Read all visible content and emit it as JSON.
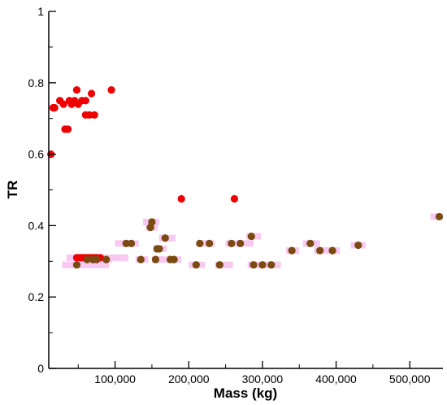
{
  "chart_data": {
    "type": "scatter",
    "title": "",
    "xlabel": "Mass (kg)",
    "ylabel": "TR",
    "xlim": [
      10000,
      545000
    ],
    "ylim": [
      0,
      1
    ],
    "xticks": [
      100000,
      200000,
      300000,
      400000,
      500000
    ],
    "xtick_labels": [
      "100,000",
      "200,000",
      "300,000",
      "400,000",
      "500,000"
    ],
    "yticks": [
      0,
      0.2,
      0.4,
      0.6,
      0.8,
      1
    ],
    "ytick_labels": [
      "0",
      "0.2",
      "0.4",
      "0.6",
      "0.8",
      "1"
    ],
    "grid": false,
    "colors": {
      "red_points": "#ee0000",
      "brown_points": "#7a4a10",
      "pink_band": "#f7c8f0",
      "axis": "#000000"
    },
    "series": [
      {
        "color": "#ee0000",
        "points": [
          [
            13000,
            0.6
          ],
          [
            16000,
            0.73
          ],
          [
            18000,
            0.73
          ],
          [
            25000,
            0.75
          ],
          [
            30000,
            0.74
          ],
          [
            32000,
            0.67
          ],
          [
            36000,
            0.67
          ],
          [
            38000,
            0.75
          ],
          [
            41000,
            0.74
          ],
          [
            45000,
            0.75
          ],
          [
            48000,
            0.78
          ],
          [
            50000,
            0.74
          ],
          [
            55000,
            0.75
          ],
          [
            60000,
            0.75
          ],
          [
            60000,
            0.71
          ],
          [
            65000,
            0.71
          ],
          [
            68000,
            0.77
          ],
          [
            72000,
            0.71
          ],
          [
            95000,
            0.78
          ],
          [
            190000,
            0.475
          ],
          [
            262000,
            0.475
          ],
          [
            48000,
            0.31
          ],
          [
            52000,
            0.31
          ],
          [
            55000,
            0.31
          ],
          [
            58000,
            0.31
          ],
          [
            62000,
            0.31
          ],
          [
            65000,
            0.31
          ],
          [
            68000,
            0.31
          ],
          [
            72000,
            0.31
          ],
          [
            75000,
            0.31
          ],
          [
            80000,
            0.31
          ]
        ]
      },
      {
        "color": "#7a4a10",
        "points": [
          [
            48000,
            0.29
          ],
          [
            62000,
            0.305
          ],
          [
            70000,
            0.305
          ],
          [
            75000,
            0.305
          ],
          [
            88000,
            0.305
          ],
          [
            115000,
            0.35
          ],
          [
            122000,
            0.35
          ],
          [
            135000,
            0.305
          ],
          [
            148000,
            0.395
          ],
          [
            150000,
            0.41
          ],
          [
            155000,
            0.305
          ],
          [
            157000,
            0.335
          ],
          [
            160000,
            0.335
          ],
          [
            168000,
            0.365
          ],
          [
            175000,
            0.305
          ],
          [
            180000,
            0.305
          ],
          [
            210000,
            0.29
          ],
          [
            215000,
            0.35
          ],
          [
            228000,
            0.35
          ],
          [
            242000,
            0.29
          ],
          [
            258000,
            0.35
          ],
          [
            270000,
            0.35
          ],
          [
            285000,
            0.37
          ],
          [
            288000,
            0.29
          ],
          [
            300000,
            0.29
          ],
          [
            312000,
            0.29
          ],
          [
            340000,
            0.33
          ],
          [
            365000,
            0.35
          ],
          [
            378000,
            0.33
          ],
          [
            395000,
            0.33
          ],
          [
            430000,
            0.345
          ],
          [
            540000,
            0.425
          ]
        ]
      }
    ],
    "bands": [
      [
        28000,
        92000,
        0.29
      ],
      [
        34000,
        118000,
        0.31
      ],
      [
        76000,
        96000,
        0.305
      ],
      [
        100000,
        132000,
        0.35
      ],
      [
        128000,
        145000,
        0.305
      ],
      [
        138000,
        160000,
        0.41
      ],
      [
        142000,
        158000,
        0.395
      ],
      [
        150000,
        190000,
        0.305
      ],
      [
        152000,
        170000,
        0.335
      ],
      [
        160000,
        182000,
        0.365
      ],
      [
        200000,
        222000,
        0.29
      ],
      [
        212000,
        235000,
        0.35
      ],
      [
        236000,
        260000,
        0.29
      ],
      [
        250000,
        288000,
        0.35
      ],
      [
        278000,
        298000,
        0.37
      ],
      [
        280000,
        320000,
        0.29
      ],
      [
        308000,
        325000,
        0.29
      ],
      [
        332000,
        350000,
        0.33
      ],
      [
        355000,
        378000,
        0.35
      ],
      [
        370000,
        395000,
        0.33
      ],
      [
        388000,
        405000,
        0.33
      ],
      [
        420000,
        440000,
        0.345
      ],
      [
        528000,
        545000,
        0.425
      ]
    ]
  }
}
